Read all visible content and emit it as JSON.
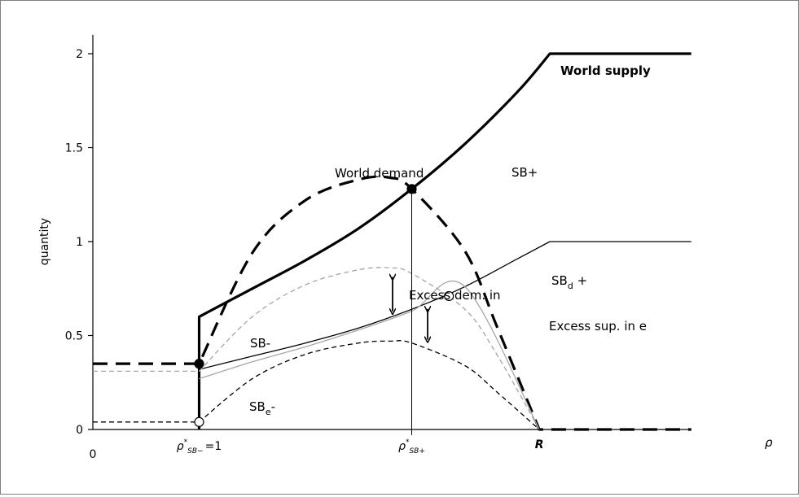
{
  "chart_data": {
    "type": "line",
    "title": "",
    "xlabel": "ρ",
    "ylabel": "quantity",
    "ylim": [
      0,
      2
    ],
    "xlim": [
      0,
      5.63
    ],
    "y_ticks": [
      0,
      0.5,
      1,
      1.5,
      2
    ],
    "y_tick_labels": [
      "0",
      "0.5",
      "1",
      "1.5",
      "2"
    ],
    "x_origin_label": "0",
    "x_tick_R": {
      "x": 4.2,
      "label": "R"
    },
    "x_tick_sbminus": {
      "x": 1.0,
      "label": "ρ*SB− =1",
      "sub": "SB−",
      "tail": "=1"
    },
    "x_tick_sbplus": {
      "x": 3.0,
      "label": "ρ*SB+",
      "sub": "SB+"
    },
    "grid": false,
    "legend": "none",
    "series": [
      {
        "name": "World supply",
        "style": "thick-solid",
        "color": "#000000",
        "points": [
          [
            1.0,
            0.0
          ],
          [
            1.0,
            0.6
          ],
          [
            1.5,
            0.75
          ],
          [
            2.0,
            0.9
          ],
          [
            2.5,
            1.07
          ],
          [
            3.0,
            1.28
          ],
          [
            3.5,
            1.52
          ],
          [
            4.0,
            1.8
          ],
          [
            4.3,
            2.0
          ],
          [
            5.63,
            2.0
          ]
        ]
      },
      {
        "name": "World demand",
        "style": "thick-dashed",
        "color": "#000000",
        "points": [
          [
            0.0,
            0.35
          ],
          [
            1.0,
            0.35
          ],
          [
            1.5,
            0.94
          ],
          [
            2.0,
            1.22
          ],
          [
            2.5,
            1.33
          ],
          [
            2.8,
            1.34
          ],
          [
            3.0,
            1.28
          ],
          [
            3.5,
            0.95
          ],
          [
            3.8,
            0.55
          ],
          [
            4.2,
            0.0
          ],
          [
            5.63,
            0.0
          ]
        ]
      },
      {
        "style": "thin-solid",
        "color": "#000000",
        "points": [
          [
            1.0,
            0.32
          ],
          [
            1.5,
            0.39
          ],
          [
            2.0,
            0.46
          ],
          [
            2.5,
            0.54
          ],
          [
            3.0,
            0.64
          ],
          [
            3.5,
            0.76
          ],
          [
            4.0,
            0.91
          ],
          [
            4.3,
            1.0
          ],
          [
            5.63,
            1.0
          ]
        ]
      },
      {
        "style": "thin-solid",
        "color": "#a6a6a6",
        "points": [
          [
            1.0,
            0.27
          ],
          [
            1.5,
            0.36
          ],
          [
            2.0,
            0.44
          ],
          [
            2.5,
            0.53
          ],
          [
            3.0,
            0.63
          ],
          [
            3.5,
            0.76
          ],
          [
            4.2,
            0.0
          ]
        ]
      },
      {
        "style": "thin-dashed",
        "color": "#a6a6a6",
        "points": [
          [
            0.0,
            0.31
          ],
          [
            1.0,
            0.31
          ],
          [
            1.5,
            0.6
          ],
          [
            2.0,
            0.77
          ],
          [
            2.5,
            0.85
          ],
          [
            2.8,
            0.86
          ],
          [
            3.0,
            0.83
          ],
          [
            3.5,
            0.64
          ],
          [
            3.8,
            0.4
          ],
          [
            4.2,
            0.0
          ]
        ]
      },
      {
        "style": "thin-dashed",
        "color": "#000000",
        "points": [
          [
            0.0,
            0.04
          ],
          [
            1.0,
            0.04
          ],
          [
            1.5,
            0.27
          ],
          [
            2.0,
            0.4
          ],
          [
            2.5,
            0.46
          ],
          [
            2.8,
            0.47
          ],
          [
            3.0,
            0.46
          ],
          [
            3.5,
            0.34
          ],
          [
            3.8,
            0.2
          ],
          [
            4.2,
            0.0
          ]
        ]
      }
    ],
    "markers": [
      {
        "id": "sb-minus-point",
        "x": 1.0,
        "y": 0.35,
        "fill": "#000000"
      },
      {
        "id": "sb-plus-point",
        "x": 3.0,
        "y": 1.28,
        "fill": "#000000"
      },
      {
        "id": "sbd-plus-point",
        "x": 3.35,
        "y": 0.71,
        "fill": "#ffffff"
      },
      {
        "id": "sbe-minus-point",
        "x": 1.0,
        "y": 0.04,
        "fill": "#ffffff"
      }
    ],
    "vertical_line": {
      "x": 3.0,
      "y_top": 1.28,
      "y_bottom": -0.03
    },
    "arrows": [
      {
        "id": "excess-demand-arrow",
        "x": 2.82,
        "y1": 0.82,
        "y2": 0.62
      },
      {
        "id": "excess-supply-arrow",
        "x": 3.15,
        "y1": 0.65,
        "y2": 0.47
      }
    ],
    "annotations": {
      "world_supply": "World supply",
      "world_demand": "World demand",
      "sb_plus": "SB+",
      "sb_minus": "SB-",
      "sbd_plus_main": "SB",
      "sbd_plus_sub": "d",
      "sbd_plus_tail": " +",
      "sbe_minus_main": "SB",
      "sbe_minus_sub": "e",
      "sbe_minus_tail": "-",
      "excess_demand": "Excess dem. in",
      "excess_supply": "Excess sup. in e"
    }
  }
}
